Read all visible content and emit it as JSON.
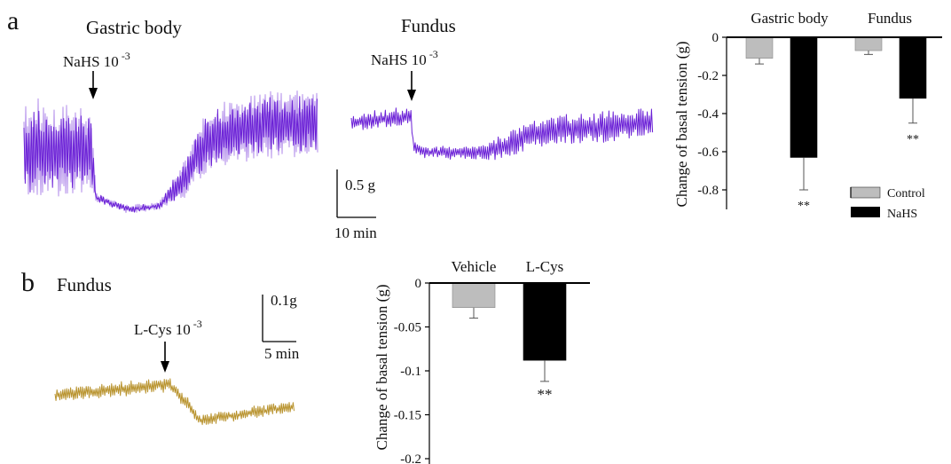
{
  "panel_a": {
    "label": "a",
    "trace_titles": [
      "Gastric body",
      "Fundus"
    ],
    "stimulus_base": "NaHS 10",
    "stimulus_exp": "-3",
    "scalebar_y": "0.5 g",
    "scalebar_x": "10 min",
    "trace_color": "#6a1fd6",
    "trace_light_color": "#a77de8"
  },
  "panel_b": {
    "label": "b",
    "trace_title": "Fundus",
    "stimulus_base": "L-Cys 10",
    "stimulus_exp": "-3",
    "scalebar_y": "0.1g",
    "scalebar_x": "5 min",
    "trace_color": "#b8922c"
  },
  "chart_data": [
    {
      "type": "bar",
      "groups": [
        "Gastric body",
        "Fundus"
      ],
      "series": [
        {
          "name": "Control",
          "color": "#bdbdbd",
          "values": [
            -0.11,
            -0.07
          ],
          "errors": [
            0.03,
            0.02
          ]
        },
        {
          "name": "NaHS",
          "color": "#000000",
          "values": [
            -0.63,
            -0.32
          ],
          "errors": [
            0.17,
            0.13
          ]
        }
      ],
      "significance": [
        "**",
        "**"
      ],
      "ylabel": "Change of basal tension (g)",
      "ylim": [
        -0.9,
        0
      ],
      "yticks": [
        0,
        -0.2,
        -0.4,
        -0.6,
        -0.8
      ],
      "ytick_labels": [
        "0",
        "-0.2",
        "-0.4",
        "-0.6",
        "-0.8"
      ],
      "legend_position": "bottom-right",
      "grid": false
    },
    {
      "type": "bar",
      "categories": [
        "Vehicle",
        "L-Cys"
      ],
      "values": [
        -0.028,
        -0.088
      ],
      "errors": [
        0.012,
        0.024
      ],
      "colors": [
        "#bdbdbd",
        "#000000"
      ],
      "significance": [
        "",
        "**"
      ],
      "ylabel": "Change of basal tension (g)",
      "ylim": [
        -0.2,
        0
      ],
      "yticks": [
        0,
        -0.05,
        -0.1,
        -0.15,
        -0.2
      ],
      "ytick_labels": [
        "0",
        "-0.05",
        "-0.1",
        "-0.15",
        "-0.2"
      ],
      "grid": false
    }
  ]
}
